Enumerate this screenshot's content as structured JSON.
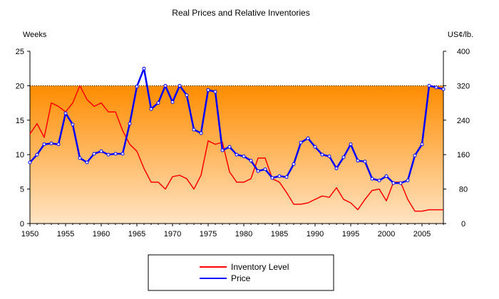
{
  "chart_data": {
    "type": "line",
    "title": "Real Prices and Relative Inventories",
    "y_left_label": "Weeks",
    "y_right_label": "US¢/lb.",
    "x_range": [
      1950,
      2008
    ],
    "x_ticks": [
      1950,
      1955,
      1960,
      1965,
      1970,
      1975,
      1980,
      1985,
      1990,
      1995,
      2000,
      2005
    ],
    "y_left_range": [
      0,
      25
    ],
    "y_left_ticks": [
      0,
      5,
      10,
      15,
      20,
      25
    ],
    "y_right_range": [
      0,
      400
    ],
    "y_right_ticks": [
      0,
      80,
      160,
      240,
      320,
      400
    ],
    "reference_line": {
      "axis": "left",
      "value": 20,
      "style": "dotted"
    },
    "background": {
      "type": "vertical-gradient",
      "from_color": "#ff8c00",
      "to_color": "#ffe4c4",
      "fill_below_left_value": 20
    },
    "series": [
      {
        "name": "Inventory Level",
        "axis": "left",
        "color": "#ff0000",
        "markers": false,
        "x": [
          1950,
          1951,
          1952,
          1953,
          1954,
          1955,
          1956,
          1957,
          1958,
          1959,
          1960,
          1961,
          1962,
          1963,
          1964,
          1965,
          1966,
          1967,
          1968,
          1969,
          1970,
          1971,
          1972,
          1973,
          1974,
          1975,
          1976,
          1977,
          1978,
          1979,
          1980,
          1981,
          1982,
          1983,
          1984,
          1985,
          1986,
          1987,
          1988,
          1989,
          1990,
          1991,
          1992,
          1993,
          1994,
          1995,
          1996,
          1997,
          1998,
          1999,
          2000,
          2001,
          2002,
          2003,
          2004,
          2005,
          2006,
          2007,
          2008
        ],
        "values": [
          13,
          14.5,
          12.5,
          17.5,
          17,
          16.2,
          17.5,
          20,
          18,
          17,
          17.5,
          16.2,
          16.2,
          13.5,
          11.5,
          10.5,
          8,
          6,
          6,
          5,
          6.8,
          7,
          6.5,
          5,
          7,
          12,
          11.5,
          11.8,
          7.5,
          6,
          6,
          6.5,
          9.5,
          9.5,
          6.5,
          6,
          4.5,
          2.8,
          2.8,
          3,
          3.5,
          4,
          3.8,
          5.2,
          3.5,
          3,
          2,
          3.5,
          4.8,
          5,
          3.3,
          6,
          6,
          3.5,
          1.8,
          1.8,
          2,
          2,
          2
        ]
      },
      {
        "name": "Price",
        "axis": "right",
        "color": "#0000ff",
        "markers": true,
        "x": [
          1950,
          1951,
          1952,
          1953,
          1954,
          1955,
          1956,
          1957,
          1958,
          1959,
          1960,
          1961,
          1962,
          1963,
          1964,
          1965,
          1966,
          1967,
          1968,
          1969,
          1970,
          1971,
          1972,
          1973,
          1974,
          1975,
          1976,
          1977,
          1978,
          1979,
          1980,
          1981,
          1982,
          1983,
          1984,
          1985,
          1986,
          1987,
          1988,
          1989,
          1990,
          1991,
          1992,
          1993,
          1994,
          1995,
          1996,
          1997,
          1998,
          1999,
          2000,
          2001,
          2002,
          2003,
          2004,
          2005,
          2006,
          2007,
          2008
        ],
        "values": [
          142,
          160,
          184,
          186,
          184,
          256,
          230,
          152,
          142,
          162,
          168,
          160,
          162,
          162,
          232,
          318,
          360,
          266,
          280,
          320,
          282,
          320,
          298,
          218,
          210,
          310,
          306,
          170,
          178,
          160,
          156,
          146,
          122,
          126,
          106,
          110,
          108,
          138,
          188,
          198,
          178,
          160,
          156,
          128,
          154,
          184,
          146,
          144,
          104,
          100,
          110,
          94,
          94,
          100,
          158,
          184,
          320,
          316,
          312
        ]
      }
    ],
    "legend": {
      "position": "bottom-center",
      "entries": [
        "Inventory Level",
        "Price"
      ]
    }
  }
}
